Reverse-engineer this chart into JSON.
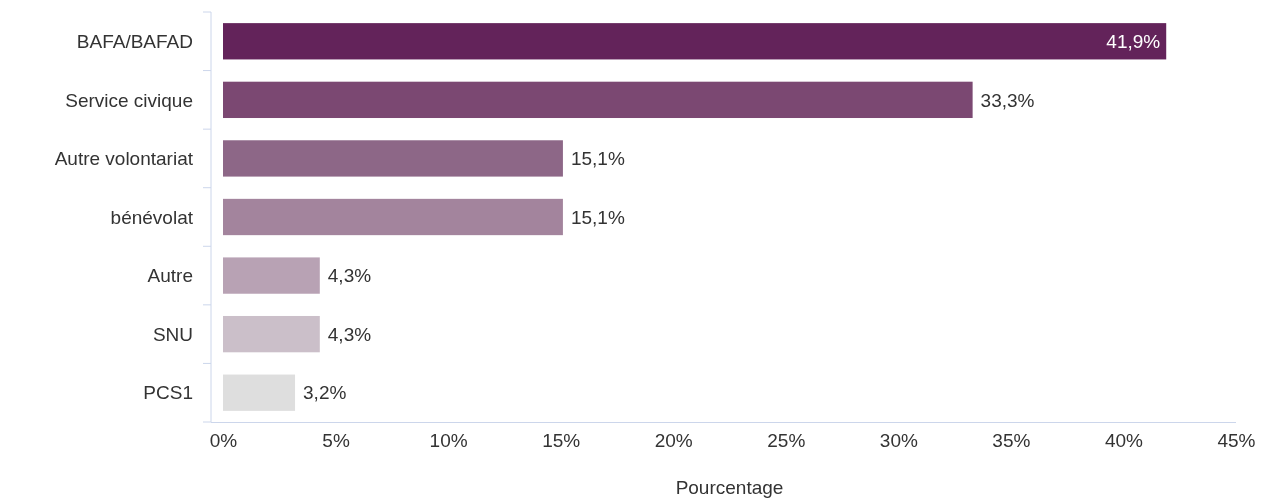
{
  "chart_data": {
    "type": "bar",
    "orientation": "horizontal",
    "xlabel": "Pourcentage",
    "categories": [
      "BAFA/BAFAD",
      "Service civique",
      "Autre volontariat",
      "bénévolat",
      "Autre",
      "SNU",
      "PCS1"
    ],
    "values": [
      41.9,
      33.3,
      15.1,
      15.1,
      4.3,
      4.3,
      3.2
    ],
    "value_labels": [
      "41,9%",
      "33,3%",
      "15,1%",
      "15,1%",
      "4,3%",
      "4,3%",
      "3,2%"
    ],
    "colors": [
      "#63235a",
      "#7b4872",
      "#8d6787",
      "#a3849d",
      "#b8a2b4",
      "#cbbfc9",
      "#dedede"
    ],
    "xlim": [
      0,
      45
    ],
    "xticks": [
      {
        "value": 0,
        "label": "0%"
      },
      {
        "value": 5,
        "label": "5%"
      },
      {
        "value": 10,
        "label": "10%"
      },
      {
        "value": 15,
        "label": "15%"
      },
      {
        "value": 20,
        "label": "20%"
      },
      {
        "value": 25,
        "label": "25%"
      },
      {
        "value": 30,
        "label": "30%"
      },
      {
        "value": 35,
        "label": "35%"
      },
      {
        "value": 40,
        "label": "40%"
      },
      {
        "value": 45,
        "label": "45%"
      }
    ],
    "grid": false
  }
}
